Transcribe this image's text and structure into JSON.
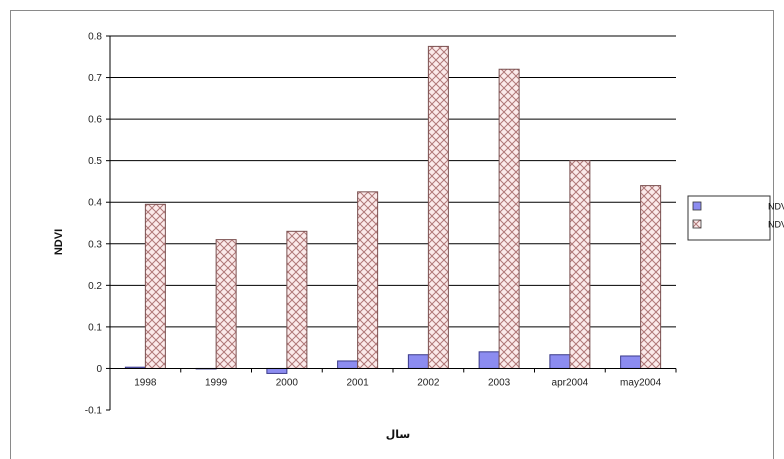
{
  "chart_data": {
    "type": "bar",
    "categories": [
      "1998",
      "1999",
      "2000",
      "2001",
      "2002",
      "2003",
      "apr2004",
      "may2004"
    ],
    "series": [
      {
        "name": "NDVI میانگین",
        "values": [
          0.003,
          0.0,
          -0.012,
          0.018,
          0.033,
          0.04,
          0.033,
          0.03
        ],
        "color": "#8c8cf0",
        "pattern": "solid"
      },
      {
        "name": "NDVI بیشینه",
        "values": [
          0.395,
          0.31,
          0.33,
          0.425,
          0.775,
          0.72,
          0.5,
          0.44
        ],
        "color": "#c8a0a0",
        "pattern": "crosshatch"
      }
    ],
    "xlabel": "سال",
    "ylabel": "NDVI",
    "ylim": [
      -0.1,
      0.8
    ],
    "yticks": [
      "-0.1",
      "0",
      "0.1",
      "0.2",
      "0.3",
      "0.4",
      "0.5",
      "0.6",
      "0.7",
      "0.8"
    ],
    "grid": true,
    "legend_position": "right"
  }
}
